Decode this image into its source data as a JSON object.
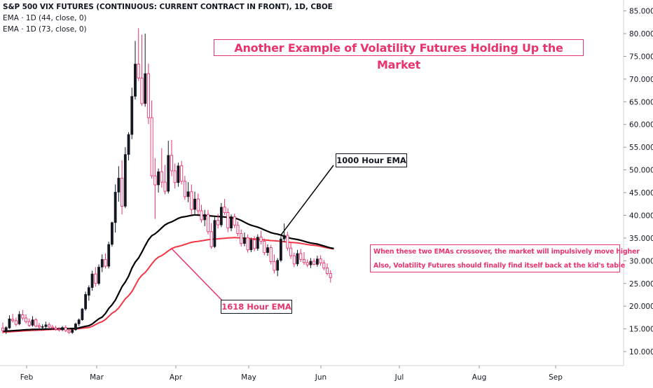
{
  "legend": {
    "title": "S&P 500 VIX FUTURES (CONTINUOUS: CURRENT CONTRACT IN FRONT), 1D, CBOE",
    "ema1": "EMA · 1D (44, close, 0)",
    "ema2": "EMA · 1D (73, close, 0)"
  },
  "annotations": {
    "headline": "Another Example of Volatility Futures Holding Up the Market",
    "label_black": "1000 Hour EMA",
    "label_red": "1618 Hour EMA",
    "note_line1": "When these two EMAs crossover, the market will impulsively move higher",
    "note_line2": "Also, Volatility Futures should finally find itself back at the kid's table"
  },
  "colors": {
    "up": "#131722",
    "down": "#e8336d",
    "ema_fast": "#000000",
    "ema_slow": "#f23645",
    "accent": "#e8336d",
    "axis_text": "#131722"
  },
  "chart_data": {
    "type": "candlestick",
    "y_axis": {
      "position": "right",
      "min": 7,
      "max": 87,
      "ticks": [
        "85.000",
        "80.000",
        "75.000",
        "70.000",
        "65.000",
        "60.000",
        "55.000",
        "50.000",
        "45.000",
        "40.000",
        "35.000",
        "30.000",
        "25.000",
        "20.000",
        "15.000",
        "10.000"
      ]
    },
    "x_axis": {
      "labels": [
        "Feb",
        "Mar",
        "Apr",
        "May",
        "Jun",
        "Jul",
        "Aug",
        "Sep"
      ]
    },
    "candles": [
      [
        15.2,
        16.4,
        14.0,
        14.6
      ],
      [
        14.5,
        15.6,
        13.9,
        15.3
      ],
      [
        15.2,
        18.0,
        15.0,
        17.2
      ],
      [
        17.1,
        18.3,
        16.4,
        16.8
      ],
      [
        16.8,
        17.5,
        15.6,
        16.0
      ],
      [
        16.1,
        18.9,
        15.8,
        18.2
      ],
      [
        18.1,
        19.2,
        16.9,
        17.4
      ],
      [
        17.4,
        18.2,
        16.2,
        16.6
      ],
      [
        16.6,
        17.3,
        15.4,
        15.8
      ],
      [
        15.8,
        17.8,
        15.5,
        17.0
      ],
      [
        17.0,
        17.4,
        15.3,
        15.6
      ],
      [
        15.7,
        16.3,
        15.0,
        15.4
      ],
      [
        15.4,
        16.0,
        14.8,
        15.5
      ],
      [
        15.5,
        16.6,
        15.1,
        15.9
      ],
      [
        15.9,
        16.4,
        15.2,
        15.4
      ],
      [
        15.4,
        15.9,
        14.9,
        15.2
      ],
      [
        15.2,
        15.7,
        14.6,
        14.9
      ],
      [
        14.9,
        15.4,
        14.4,
        14.8
      ],
      [
        14.8,
        15.6,
        14.5,
        15.3
      ],
      [
        15.3,
        15.8,
        14.3,
        14.6
      ],
      [
        14.6,
        15.1,
        13.9,
        14.2
      ],
      [
        14.2,
        15.0,
        13.9,
        14.8
      ],
      [
        14.8,
        16.4,
        14.6,
        16.1
      ],
      [
        16.1,
        17.3,
        15.6,
        17.0
      ],
      [
        17.0,
        19.6,
        16.8,
        19.4
      ],
      [
        19.4,
        23.2,
        19.0,
        22.6
      ],
      [
        22.4,
        24.6,
        21.2,
        24.1
      ],
      [
        24.1,
        27.8,
        23.4,
        27.1
      ],
      [
        27.1,
        28.6,
        24.3,
        25.0
      ],
      [
        25.0,
        29.2,
        24.6,
        28.6
      ],
      [
        28.6,
        31.4,
        27.5,
        30.3
      ],
      [
        30.3,
        31.6,
        28.3,
        28.8
      ],
      [
        28.8,
        34.2,
        28.3,
        33.6
      ],
      [
        33.6,
        38.6,
        33.1,
        38.4
      ],
      [
        38.4,
        46.8,
        36.2,
        45.1
      ],
      [
        45.1,
        50.8,
        43.0,
        48.2
      ],
      [
        48.2,
        52.1,
        40.2,
        42.0
      ],
      [
        42.0,
        55.0,
        41.6,
        53.4
      ],
      [
        53.4,
        58.3,
        52.1,
        57.8
      ],
      [
        57.8,
        68.1,
        56.8,
        66.2
      ],
      [
        66.2,
        78.4,
        65.5,
        73.3
      ],
      [
        73.3,
        81.2,
        69.6,
        70.2
      ],
      [
        70.2,
        79.8,
        64.1,
        64.6
      ],
      [
        64.6,
        80.0,
        63.9,
        71.2
      ],
      [
        71.2,
        73.4,
        60.1,
        61.5
      ],
      [
        61.5,
        65.3,
        48.1,
        48.7
      ],
      [
        48.7,
        52.6,
        39.2,
        46.7
      ],
      [
        46.7,
        50.3,
        45.0,
        49.6
      ],
      [
        49.6,
        54.8,
        46.1,
        47.3
      ],
      [
        47.3,
        51.1,
        44.6,
        45.3
      ],
      [
        45.3,
        56.4,
        44.8,
        53.2
      ],
      [
        53.2,
        56.6,
        48.6,
        49.8
      ],
      [
        49.8,
        51.4,
        45.9,
        47.2
      ],
      [
        47.2,
        51.6,
        46.3,
        50.9
      ],
      [
        50.9,
        52.0,
        46.8,
        47.5
      ],
      [
        47.5,
        48.7,
        43.4,
        44.1
      ],
      [
        44.1,
        47.3,
        42.9,
        45.2
      ],
      [
        45.2,
        46.8,
        40.1,
        41.3
      ],
      [
        41.3,
        45.2,
        40.3,
        43.6
      ],
      [
        43.6,
        44.8,
        40.2,
        41.0
      ],
      [
        41.0,
        42.3,
        38.4,
        39.0
      ],
      [
        39.0,
        41.2,
        37.6,
        40.2
      ],
      [
        40.2,
        41.2,
        35.8,
        36.4
      ],
      [
        36.4,
        38.3,
        32.6,
        33.1
      ],
      [
        33.1,
        39.6,
        32.8,
        38.9
      ],
      [
        38.9,
        40.3,
        37.1,
        37.9
      ],
      [
        37.9,
        42.7,
        37.4,
        41.8
      ],
      [
        41.8,
        43.6,
        40.1,
        40.6
      ],
      [
        40.6,
        41.5,
        36.3,
        37.2
      ],
      [
        37.2,
        40.2,
        36.5,
        39.7
      ],
      [
        39.7,
        40.4,
        37.2,
        37.8
      ],
      [
        37.8,
        38.6,
        35.4,
        36.0
      ],
      [
        36.0,
        36.9,
        33.1,
        33.8
      ],
      [
        33.8,
        36.2,
        33.2,
        35.1
      ],
      [
        35.1,
        35.8,
        31.8,
        32.4
      ],
      [
        32.4,
        35.1,
        31.9,
        34.6
      ],
      [
        34.6,
        35.4,
        32.1,
        32.7
      ],
      [
        32.7,
        35.8,
        32.2,
        35.2
      ],
      [
        35.2,
        36.6,
        33.6,
        34.3
      ],
      [
        34.3,
        34.9,
        31.2,
        31.8
      ],
      [
        31.8,
        33.6,
        31.1,
        32.9
      ],
      [
        32.9,
        33.5,
        29.2,
        29.8
      ],
      [
        29.8,
        31.4,
        27.2,
        27.9
      ],
      [
        27.9,
        30.6,
        26.6,
        30.1
      ],
      [
        30.1,
        35.4,
        29.7,
        34.8
      ],
      [
        34.8,
        38.2,
        34.1,
        35.6
      ],
      [
        35.6,
        36.4,
        32.2,
        32.8
      ],
      [
        32.8,
        33.9,
        30.4,
        31.1
      ],
      [
        31.1,
        31.8,
        28.6,
        29.3
      ],
      [
        29.3,
        32.4,
        28.8,
        31.6
      ],
      [
        31.6,
        32.6,
        29.7,
        30.3
      ],
      [
        30.3,
        31.9,
        29.1,
        29.6
      ],
      [
        29.6,
        30.3,
        28.6,
        29.1
      ],
      [
        29.1,
        30.6,
        28.4,
        29.9
      ],
      [
        29.9,
        30.5,
        29.0,
        29.2
      ],
      [
        29.2,
        31.1,
        28.7,
        30.4
      ],
      [
        30.4,
        31.2,
        28.9,
        29.5
      ],
      [
        29.5,
        30.2,
        27.9,
        28.4
      ],
      [
        28.4,
        29.4,
        26.8,
        27.2
      ],
      [
        27.2,
        27.9,
        25.2,
        26.3
      ]
    ],
    "ema_44_anchors": [
      [
        0,
        14.5
      ],
      [
        10,
        14.9
      ],
      [
        16,
        15.0
      ],
      [
        22,
        15.1
      ],
      [
        26,
        15.7
      ],
      [
        30,
        17.6
      ],
      [
        33,
        20.3
      ],
      [
        37,
        25.3
      ],
      [
        40,
        29.7
      ],
      [
        45,
        35.5
      ],
      [
        50,
        38.3
      ],
      [
        54,
        39.6
      ],
      [
        58,
        40.1
      ],
      [
        62,
        39.9
      ],
      [
        66,
        39.7
      ],
      [
        70,
        39.4
      ],
      [
        76,
        37.6
      ],
      [
        82,
        36.0
      ],
      [
        88,
        34.8
      ],
      [
        94,
        33.8
      ],
      [
        100,
        32.7
      ]
    ],
    "ema_73_anchors": [
      [
        0,
        14.3
      ],
      [
        10,
        14.7
      ],
      [
        16,
        14.9
      ],
      [
        22,
        15.0
      ],
      [
        26,
        15.3
      ],
      [
        30,
        16.6
      ],
      [
        34,
        18.9
      ],
      [
        38,
        22.3
      ],
      [
        42,
        26.8
      ],
      [
        47,
        30.8
      ],
      [
        52,
        33.0
      ],
      [
        58,
        34.2
      ],
      [
        64,
        34.8
      ],
      [
        70,
        35.1
      ],
      [
        76,
        34.8
      ],
      [
        82,
        34.4
      ],
      [
        88,
        34.0
      ],
      [
        94,
        33.4
      ],
      [
        100,
        32.6
      ]
    ],
    "callouts": [
      {
        "label": "1000 Hour EMA",
        "series": "ema_44",
        "at_index": 84
      },
      {
        "label": "1618 Hour EMA",
        "series": "ema_73",
        "at_index": 51
      }
    ]
  }
}
